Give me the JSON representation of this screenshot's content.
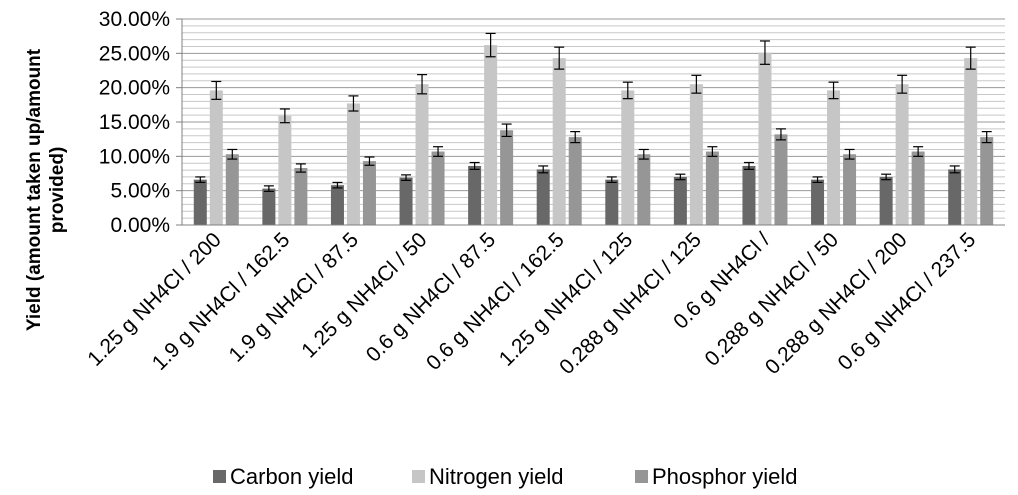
{
  "chart_data": {
    "type": "bar",
    "ylabel_lines": [
      "Yield (amount taken up/amount",
      "provided)"
    ],
    "ylim": [
      0,
      0.3
    ],
    "yticks": [
      0,
      0.05,
      0.1,
      0.15,
      0.2,
      0.25,
      0.3
    ],
    "ytick_labels": [
      "0.00%",
      "5.00%",
      "10.00%",
      "15.00%",
      "20.00%",
      "25.00%",
      "30.00%"
    ],
    "grid": true,
    "legend_position": "bottom",
    "categories": [
      "1.25 g NH4Cl / 200",
      "1.9 g NH4Cl / 162.5",
      "1.9 g NH4Cl / 87.5",
      "1.25 g NH4Cl / 50",
      "0.6 g NH4Cl / 87.5",
      "0.6 g NH4Cl / 162.5",
      "1.25 g NH4Cl / 125",
      "0.288 g NH4Cl / 125",
      "0.6 g NH4Cl /",
      "0.288 g NH4Cl / 50",
      "0.288 g NH4Cl / 200",
      "0.6 g NH4Cl / 237.5"
    ],
    "series": [
      {
        "name": "Carbon yield",
        "color": "#686868",
        "values": [
          0.066,
          0.053,
          0.058,
          0.069,
          0.086,
          0.081,
          0.066,
          0.07,
          0.086,
          0.066,
          0.07,
          0.081
        ],
        "errors": [
          0.004,
          0.004,
          0.004,
          0.004,
          0.005,
          0.005,
          0.004,
          0.004,
          0.005,
          0.004,
          0.004,
          0.005
        ]
      },
      {
        "name": "Nitrogen yield",
        "color": "#c6c6c6",
        "values": [
          0.196,
          0.159,
          0.177,
          0.205,
          0.262,
          0.243,
          0.196,
          0.205,
          0.251,
          0.196,
          0.205,
          0.243
        ],
        "errors": [
          0.013,
          0.01,
          0.011,
          0.014,
          0.017,
          0.016,
          0.012,
          0.013,
          0.017,
          0.012,
          0.013,
          0.016
        ]
      },
      {
        "name": "Phosphor yield",
        "color": "#969696",
        "values": [
          0.103,
          0.083,
          0.093,
          0.107,
          0.138,
          0.128,
          0.103,
          0.107,
          0.132,
          0.103,
          0.107,
          0.128
        ],
        "errors": [
          0.007,
          0.006,
          0.006,
          0.007,
          0.009,
          0.008,
          0.007,
          0.007,
          0.008,
          0.007,
          0.007,
          0.008
        ]
      }
    ]
  }
}
